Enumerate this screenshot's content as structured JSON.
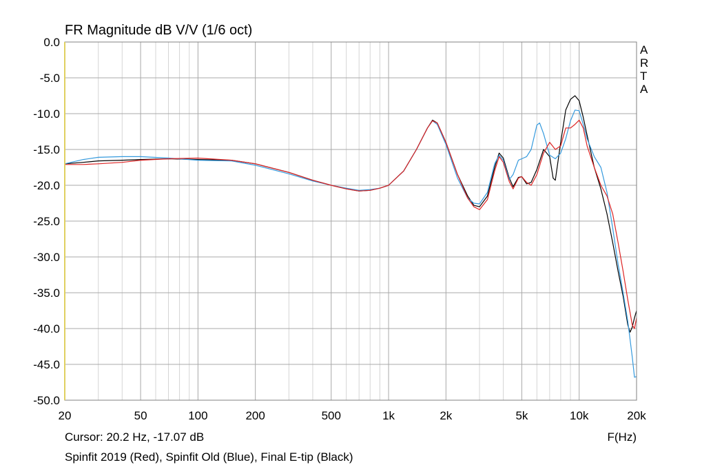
{
  "title": "FR Magnitude dB V/V (1/6 oct)",
  "brand": [
    "A",
    "R",
    "T",
    "A"
  ],
  "cursor_text": "Cursor: 20.2 Hz, -17.07 dB",
  "legend_text": "Spinfit 2019 (Red), Spinfit Old (Blue), Final E-tip (Black)",
  "xunit": "F(Hz)",
  "chart_data": {
    "type": "line",
    "title": "FR Magnitude dB V/V (1/6 oct)",
    "xlabel": "F(Hz)",
    "ylabel": "",
    "xscale": "log",
    "xlim": [
      20,
      20000
    ],
    "ylim": [
      -50,
      0
    ],
    "grid": true,
    "legend": "bottom text",
    "x_ticks": [
      20,
      50,
      100,
      200,
      500,
      1000,
      2000,
      5000,
      10000,
      20000
    ],
    "x_tick_labels": [
      "20",
      "50",
      "100",
      "200",
      "500",
      "1k",
      "2k",
      "5k",
      "10k",
      "20k"
    ],
    "y_ticks": [
      0,
      -5,
      -10,
      -15,
      -20,
      -25,
      -30,
      -35,
      -40,
      -45,
      -50
    ],
    "y_tick_labels": [
      "0.0",
      "-5.0",
      "-10.0",
      "-15.0",
      "-20.0",
      "-25.0",
      "-30.0",
      "-35.0",
      "-40.0",
      "-45.0",
      "-50.0"
    ],
    "series": [
      {
        "name": "Final E-tip",
        "color": "#000000",
        "points": [
          [
            20,
            -17.0
          ],
          [
            25,
            -16.8
          ],
          [
            30,
            -16.6
          ],
          [
            40,
            -16.5
          ],
          [
            50,
            -16.4
          ],
          [
            70,
            -16.3
          ],
          [
            100,
            -16.4
          ],
          [
            150,
            -16.5
          ],
          [
            200,
            -17.0
          ],
          [
            300,
            -18.2
          ],
          [
            400,
            -19.3
          ],
          [
            500,
            -20.0
          ],
          [
            600,
            -20.5
          ],
          [
            700,
            -20.8
          ],
          [
            800,
            -20.7
          ],
          [
            900,
            -20.4
          ],
          [
            1000,
            -20.0
          ],
          [
            1200,
            -18.0
          ],
          [
            1400,
            -15.0
          ],
          [
            1600,
            -12.0
          ],
          [
            1700,
            -10.9
          ],
          [
            1800,
            -11.3
          ],
          [
            2000,
            -14.0
          ],
          [
            2300,
            -18.5
          ],
          [
            2600,
            -21.5
          ],
          [
            2800,
            -22.8
          ],
          [
            3000,
            -23.0
          ],
          [
            3300,
            -21.5
          ],
          [
            3600,
            -17.5
          ],
          [
            3800,
            -15.5
          ],
          [
            4000,
            -16.2
          ],
          [
            4300,
            -19.0
          ],
          [
            4500,
            -20.2
          ],
          [
            4800,
            -18.9
          ],
          [
            5000,
            -18.8
          ],
          [
            5300,
            -19.8
          ],
          [
            5600,
            -19.6
          ],
          [
            6000,
            -17.8
          ],
          [
            6500,
            -15.0
          ],
          [
            7000,
            -16.0
          ],
          [
            7300,
            -19.0
          ],
          [
            7500,
            -19.3
          ],
          [
            8000,
            -14.0
          ],
          [
            8500,
            -9.5
          ],
          [
            9000,
            -8.0
          ],
          [
            9500,
            -7.5
          ],
          [
            10000,
            -8.2
          ],
          [
            10500,
            -10.5
          ],
          [
            11000,
            -13.0
          ],
          [
            12000,
            -17.5
          ],
          [
            13000,
            -20.5
          ],
          [
            14000,
            -24.0
          ],
          [
            15000,
            -28.0
          ],
          [
            16000,
            -32.0
          ],
          [
            17000,
            -35.5
          ],
          [
            18000,
            -39.5
          ],
          [
            18500,
            -40.5
          ],
          [
            19000,
            -39.8
          ],
          [
            19500,
            -38.5
          ],
          [
            20000,
            -37.5
          ]
        ]
      },
      {
        "name": "Spinfit Old",
        "color": "#3399dd",
        "points": [
          [
            20,
            -17.0
          ],
          [
            25,
            -16.4
          ],
          [
            30,
            -16.1
          ],
          [
            40,
            -16.0
          ],
          [
            50,
            -16.0
          ],
          [
            70,
            -16.2
          ],
          [
            100,
            -16.5
          ],
          [
            150,
            -16.6
          ],
          [
            200,
            -17.2
          ],
          [
            300,
            -18.4
          ],
          [
            400,
            -19.4
          ],
          [
            500,
            -20.0
          ],
          [
            600,
            -20.4
          ],
          [
            700,
            -20.7
          ],
          [
            800,
            -20.6
          ],
          [
            900,
            -20.4
          ],
          [
            1000,
            -20.0
          ],
          [
            1200,
            -18.0
          ],
          [
            1400,
            -15.0
          ],
          [
            1600,
            -12.0
          ],
          [
            1700,
            -11.0
          ],
          [
            1800,
            -11.5
          ],
          [
            2000,
            -14.3
          ],
          [
            2300,
            -19.0
          ],
          [
            2600,
            -21.8
          ],
          [
            2800,
            -22.5
          ],
          [
            3000,
            -22.6
          ],
          [
            3300,
            -21.0
          ],
          [
            3600,
            -17.0
          ],
          [
            3800,
            -15.8
          ],
          [
            4000,
            -16.5
          ],
          [
            4300,
            -19.2
          ],
          [
            4500,
            -18.5
          ],
          [
            4800,
            -16.5
          ],
          [
            5000,
            -16.3
          ],
          [
            5300,
            -16.0
          ],
          [
            5600,
            -15.0
          ],
          [
            6000,
            -11.6
          ],
          [
            6200,
            -11.3
          ],
          [
            6500,
            -12.8
          ],
          [
            7000,
            -15.8
          ],
          [
            7500,
            -16.3
          ],
          [
            8000,
            -15.5
          ],
          [
            8500,
            -13.5
          ],
          [
            9000,
            -11.0
          ],
          [
            9500,
            -9.5
          ],
          [
            10000,
            -9.6
          ],
          [
            10500,
            -11.5
          ],
          [
            11000,
            -13.5
          ],
          [
            12000,
            -16.0
          ],
          [
            13000,
            -17.5
          ],
          [
            14000,
            -21.0
          ],
          [
            15000,
            -26.0
          ],
          [
            16000,
            -31.0
          ],
          [
            17000,
            -35.0
          ],
          [
            18000,
            -39.0
          ],
          [
            19000,
            -44.0
          ],
          [
            19500,
            -46.8
          ],
          [
            20000,
            -46.7
          ]
        ]
      },
      {
        "name": "Spinfit 2019",
        "color": "#dd2222",
        "points": [
          [
            20,
            -17.1
          ],
          [
            25,
            -17.1
          ],
          [
            30,
            -17.0
          ],
          [
            40,
            -16.8
          ],
          [
            50,
            -16.5
          ],
          [
            70,
            -16.3
          ],
          [
            100,
            -16.2
          ],
          [
            150,
            -16.5
          ],
          [
            200,
            -17.0
          ],
          [
            300,
            -18.2
          ],
          [
            400,
            -19.3
          ],
          [
            500,
            -20.0
          ],
          [
            600,
            -20.5
          ],
          [
            700,
            -20.8
          ],
          [
            800,
            -20.7
          ],
          [
            900,
            -20.4
          ],
          [
            1000,
            -20.0
          ],
          [
            1200,
            -18.0
          ],
          [
            1400,
            -15.0
          ],
          [
            1600,
            -12.0
          ],
          [
            1700,
            -11.0
          ],
          [
            1800,
            -11.3
          ],
          [
            2000,
            -14.0
          ],
          [
            2300,
            -18.5
          ],
          [
            2600,
            -21.8
          ],
          [
            2800,
            -23.0
          ],
          [
            3000,
            -23.4
          ],
          [
            3300,
            -22.0
          ],
          [
            3600,
            -18.0
          ],
          [
            3800,
            -16.0
          ],
          [
            4000,
            -16.8
          ],
          [
            4300,
            -19.5
          ],
          [
            4500,
            -20.5
          ],
          [
            4800,
            -19.0
          ],
          [
            5000,
            -18.8
          ],
          [
            5300,
            -19.6
          ],
          [
            5600,
            -20.0
          ],
          [
            6000,
            -18.5
          ],
          [
            6500,
            -15.5
          ],
          [
            7000,
            -14.0
          ],
          [
            7500,
            -15.0
          ],
          [
            8000,
            -14.5
          ],
          [
            8500,
            -12.0
          ],
          [
            9000,
            -12.0
          ],
          [
            9500,
            -11.5
          ],
          [
            10000,
            -10.9
          ],
          [
            10500,
            -12.0
          ],
          [
            11000,
            -14.5
          ],
          [
            12000,
            -17.5
          ],
          [
            13000,
            -20.0
          ],
          [
            14000,
            -21.5
          ],
          [
            15000,
            -24.0
          ],
          [
            16000,
            -28.0
          ],
          [
            17000,
            -32.0
          ],
          [
            18000,
            -36.0
          ],
          [
            19000,
            -39.5
          ],
          [
            19500,
            -40.0
          ],
          [
            20000,
            -38.5
          ]
        ]
      }
    ]
  }
}
